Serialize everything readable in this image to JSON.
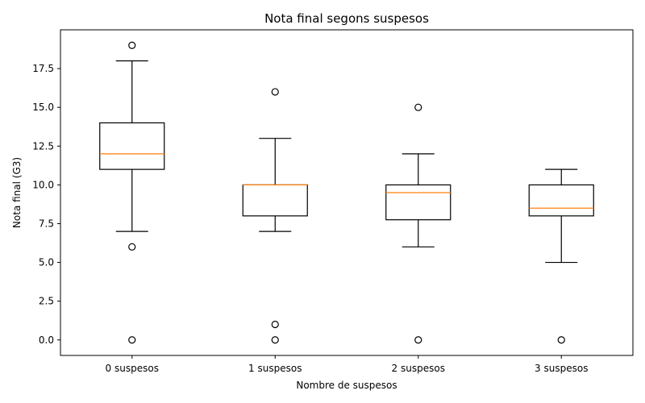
{
  "chart_data": {
    "type": "boxplot",
    "title": "Nota final segons suspesos",
    "xlabel": "Nombre de suspesos",
    "ylabel": "Nota final (G3)",
    "ylim": [
      -1,
      20
    ],
    "yticks": [
      "0.0",
      "2.5",
      "5.0",
      "7.5",
      "10.0",
      "12.5",
      "15.0",
      "17.5"
    ],
    "categories": [
      "0 suspesos",
      "1 suspesos",
      "2 suspesos",
      "3 suspesos"
    ],
    "boxes": [
      {
        "whislo": 7,
        "q1": 11,
        "med": 12,
        "q3": 14,
        "whishi": 18,
        "fliers": [
          19,
          6,
          0
        ]
      },
      {
        "whislo": 7,
        "q1": 8,
        "med": 10,
        "q3": 10,
        "whishi": 13,
        "fliers": [
          16,
          1,
          0
        ]
      },
      {
        "whislo": 6,
        "q1": 7.75,
        "med": 9.5,
        "q3": 10,
        "whishi": 12,
        "fliers": [
          15,
          0
        ]
      },
      {
        "whislo": 5,
        "q1": 8,
        "med": 8.5,
        "q3": 10,
        "whishi": 11,
        "fliers": [
          0
        ]
      }
    ],
    "grid": false,
    "colors": {
      "box": "#000000",
      "median": "#ff7f0e",
      "flier": "#000000"
    }
  }
}
